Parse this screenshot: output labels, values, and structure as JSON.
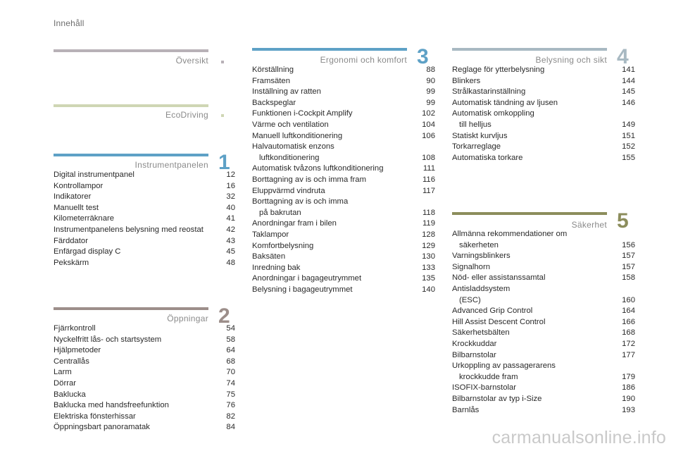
{
  "header": {
    "title": "Innehåll"
  },
  "colors": {
    "gray": "#b8b1b7",
    "green": "#cfd6b4",
    "blue": "#5ea1c6",
    "slate": "#a8b9c2",
    "olive": "#8c8d5c",
    "brown": "#9c8e8a"
  },
  "sections": {
    "oversikt": {
      "title": "Översikt"
    },
    "ecodriving": {
      "title": "EcoDriving"
    },
    "s1": {
      "number": "1",
      "title": "Instrumentpanelen",
      "items": [
        {
          "label": "Digital instrumentpanel",
          "page": "12"
        },
        {
          "label": "Kontrollampor",
          "page": "16"
        },
        {
          "label": "Indikatorer",
          "page": "32"
        },
        {
          "label": "Manuellt test",
          "page": "40"
        },
        {
          "label": "Kilometerräknare",
          "page": "41"
        },
        {
          "label": "Instrumentpanelens belysning med reostat",
          "page": "42"
        },
        {
          "label": "Färddator",
          "page": "43"
        },
        {
          "label": "Enfärgad display C",
          "page": "45"
        },
        {
          "label": "Pekskärm",
          "page": "48"
        }
      ]
    },
    "s2": {
      "number": "2",
      "title": "Öppningar",
      "items": [
        {
          "label": "Fjärrkontroll",
          "page": "54"
        },
        {
          "label": "Nyckelfritt lås- och startsystem",
          "page": "58"
        },
        {
          "label": "Hjälpmetoder",
          "page": "64"
        },
        {
          "label": "Centrallås",
          "page": "68"
        },
        {
          "label": "Larm",
          "page": "70"
        },
        {
          "label": "Dörrar",
          "page": "74"
        },
        {
          "label": "Baklucka",
          "page": "75"
        },
        {
          "label": "Baklucka med handsfreefunktion",
          "page": "76"
        },
        {
          "label": "Elektriska fönsterhissar",
          "page": "82"
        },
        {
          "label": "Öppningsbart panoramatak",
          "page": "84"
        }
      ]
    },
    "s3": {
      "number": "3",
      "title": "Ergonomi och komfort",
      "items": [
        {
          "label": "Körställning",
          "page": "88"
        },
        {
          "label": "Framsäten",
          "page": "90"
        },
        {
          "label": "Inställning av ratten",
          "page": "99"
        },
        {
          "label": "Backspeglar",
          "page": "99"
        },
        {
          "label": "Funktionen i-Cockpit Amplify",
          "page": "102"
        },
        {
          "label": "Värme och ventilation",
          "page": "104"
        },
        {
          "label": "Manuell luftkonditionering",
          "page": "106"
        },
        {
          "label": "Halvautomatisk enzons",
          "label2": "luftkonditionering",
          "page": "108"
        },
        {
          "label": "Automatisk tvåzons luftkonditionering",
          "page": "111"
        },
        {
          "label": "Borttagning av is och imma fram",
          "page": "116"
        },
        {
          "label": "Eluppvärmd vindruta",
          "page": "117"
        },
        {
          "label": "Borttagning av is och imma",
          "label2": "på bakrutan",
          "page": "118"
        },
        {
          "label": "Anordningar fram i bilen",
          "page": "119"
        },
        {
          "label": "Taklampor",
          "page": "128"
        },
        {
          "label": "Komfortbelysning",
          "page": "129"
        },
        {
          "label": "Baksäten",
          "page": "130"
        },
        {
          "label": "Inredning bak",
          "page": "133"
        },
        {
          "label": "Anordningar i bagageutrymmet",
          "page": "135"
        },
        {
          "label": "Belysning i bagageutrymmet",
          "page": "140"
        }
      ]
    },
    "s4": {
      "number": "4",
      "title": "Belysning och sikt",
      "items": [
        {
          "label": "Reglage för ytterbelysning",
          "page": "141"
        },
        {
          "label": "Blinkers",
          "page": "144"
        },
        {
          "label": "Strålkastarinställning",
          "page": "145"
        },
        {
          "label": "Automatisk tändning av ljusen",
          "page": "146"
        },
        {
          "label": "Automatisk omkoppling",
          "label2": "till helljus",
          "page": "149"
        },
        {
          "label": "Statiskt kurvljus",
          "page": "151"
        },
        {
          "label": "Torkarreglage",
          "page": "152"
        },
        {
          "label": "Automatiska torkare",
          "page": "155"
        }
      ]
    },
    "s5": {
      "number": "5",
      "title": "Säkerhet",
      "items": [
        {
          "label": "Allmänna rekommendationer om",
          "label2": "säkerheten",
          "page": "156"
        },
        {
          "label": "Varningsblinkers",
          "page": "157"
        },
        {
          "label": "Signalhorn",
          "page": "157"
        },
        {
          "label": "Nöd- eller assistanssamtal",
          "page": "158"
        },
        {
          "label": "Antisladdsystem",
          "label2": "(ESC)",
          "page": "160"
        },
        {
          "label": "Advanced Grip Control",
          "page": "164"
        },
        {
          "label": "Hill Assist Descent Control",
          "page": "166"
        },
        {
          "label": "Säkerhetsbälten",
          "page": "168"
        },
        {
          "label": "Krockkuddar",
          "page": "172"
        },
        {
          "label": "Bilbarnstolar",
          "page": "177"
        },
        {
          "label": "Urkoppling av passagerarens",
          "label2": "krockkudde fram",
          "page": "179"
        },
        {
          "label": "ISOFIX-barnstolar",
          "page": "186"
        },
        {
          "label": "Bilbarnstolar av typ i-Size",
          "page": "190"
        },
        {
          "label": "Barnlås",
          "page": "193"
        }
      ]
    }
  },
  "watermark": "carmanualsonline.info"
}
